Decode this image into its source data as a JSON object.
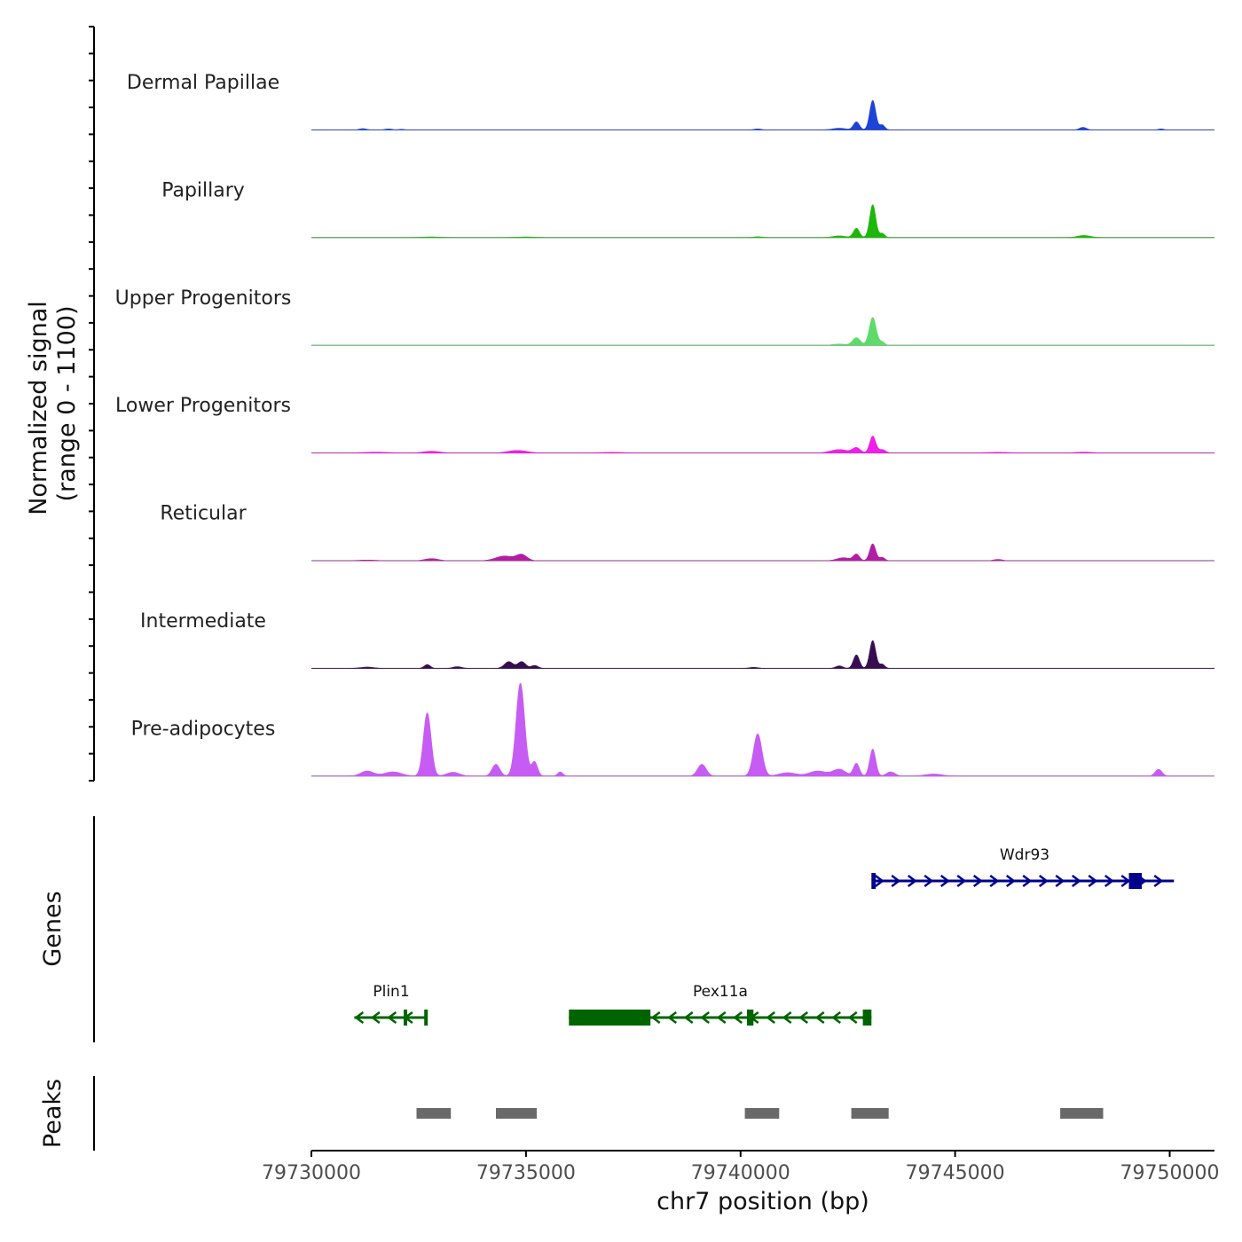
{
  "chart_data": {
    "type": "area",
    "xlabel": "chr7 position (bp)",
    "ylabel_line1": "Normalized signal",
    "ylabel_line2": "(range 0 - 1100)",
    "ylim": [
      0,
      1100
    ],
    "xlim": [
      79730000,
      79751000
    ],
    "x_ticks": [
      79730000,
      79735000,
      79740000,
      79745000,
      79750000
    ],
    "x_tick_labels": [
      "79730000",
      "79735000",
      "79740000",
      "79745000",
      "79750000"
    ],
    "series": [
      {
        "name": "Dermal Papillae",
        "color": "#1D43D8",
        "peaks": [
          {
            "x": 79731200,
            "w": 80,
            "h": 15
          },
          {
            "x": 79731800,
            "w": 80,
            "h": 12
          },
          {
            "x": 79732100,
            "w": 60,
            "h": 8
          },
          {
            "x": 79740400,
            "w": 80,
            "h": 12
          },
          {
            "x": 79742300,
            "w": 150,
            "h": 20
          },
          {
            "x": 79742700,
            "w": 70,
            "h": 95
          },
          {
            "x": 79743080,
            "w": 70,
            "h": 350
          },
          {
            "x": 79743300,
            "w": 60,
            "h": 60
          },
          {
            "x": 79747980,
            "w": 80,
            "h": 30
          },
          {
            "x": 79749800,
            "w": 60,
            "h": 12
          }
        ]
      },
      {
        "name": "Papillary",
        "color": "#1DB70B",
        "peaks": [
          {
            "x": 79732800,
            "w": 200,
            "h": 8
          },
          {
            "x": 79735000,
            "w": 200,
            "h": 8
          },
          {
            "x": 79740400,
            "w": 100,
            "h": 10
          },
          {
            "x": 79742300,
            "w": 150,
            "h": 20
          },
          {
            "x": 79742700,
            "w": 70,
            "h": 110
          },
          {
            "x": 79743080,
            "w": 70,
            "h": 390
          },
          {
            "x": 79743300,
            "w": 60,
            "h": 50
          },
          {
            "x": 79748000,
            "w": 150,
            "h": 25
          }
        ]
      },
      {
        "name": "Upper Progenitors",
        "color": "#5EDB6A",
        "peaks": [
          {
            "x": 79742300,
            "w": 150,
            "h": 15
          },
          {
            "x": 79742700,
            "w": 90,
            "h": 90
          },
          {
            "x": 79743080,
            "w": 80,
            "h": 330
          },
          {
            "x": 79743300,
            "w": 60,
            "h": 40
          }
        ]
      },
      {
        "name": "Lower Progenitors",
        "color": "#F01EE8",
        "peaks": [
          {
            "x": 79731500,
            "w": 300,
            "h": 10
          },
          {
            "x": 79732800,
            "w": 200,
            "h": 20
          },
          {
            "x": 79734800,
            "w": 220,
            "h": 30
          },
          {
            "x": 79737000,
            "w": 300,
            "h": 8
          },
          {
            "x": 79742300,
            "w": 200,
            "h": 40
          },
          {
            "x": 79742700,
            "w": 90,
            "h": 60
          },
          {
            "x": 79743080,
            "w": 70,
            "h": 200
          },
          {
            "x": 79743300,
            "w": 80,
            "h": 40
          },
          {
            "x": 79746000,
            "w": 300,
            "h": 8
          },
          {
            "x": 79748000,
            "w": 200,
            "h": 10
          }
        ]
      },
      {
        "name": "Reticular",
        "color": "#B21EA3",
        "peaks": [
          {
            "x": 79731300,
            "w": 200,
            "h": 8
          },
          {
            "x": 79732800,
            "w": 150,
            "h": 25
          },
          {
            "x": 79734500,
            "w": 200,
            "h": 55
          },
          {
            "x": 79734900,
            "w": 120,
            "h": 70
          },
          {
            "x": 79742400,
            "w": 150,
            "h": 35
          },
          {
            "x": 79742700,
            "w": 70,
            "h": 75
          },
          {
            "x": 79743080,
            "w": 70,
            "h": 200
          },
          {
            "x": 79743300,
            "w": 60,
            "h": 40
          },
          {
            "x": 79746000,
            "w": 100,
            "h": 15
          }
        ]
      },
      {
        "name": "Intermediate",
        "color": "#380D50",
        "peaks": [
          {
            "x": 79731300,
            "w": 150,
            "h": 15
          },
          {
            "x": 79732700,
            "w": 70,
            "h": 45
          },
          {
            "x": 79733400,
            "w": 100,
            "h": 20
          },
          {
            "x": 79734600,
            "w": 100,
            "h": 80
          },
          {
            "x": 79734900,
            "w": 90,
            "h": 80
          },
          {
            "x": 79735200,
            "w": 80,
            "h": 35
          },
          {
            "x": 79740300,
            "w": 100,
            "h": 12
          },
          {
            "x": 79742300,
            "w": 80,
            "h": 30
          },
          {
            "x": 79742700,
            "w": 70,
            "h": 160
          },
          {
            "x": 79743080,
            "w": 70,
            "h": 330
          },
          {
            "x": 79743300,
            "w": 60,
            "h": 50
          }
        ]
      },
      {
        "name": "Pre-adipocytes",
        "color": "#C65CF4",
        "peaks": [
          {
            "x": 79731300,
            "w": 150,
            "h": 60
          },
          {
            "x": 79731900,
            "w": 200,
            "h": 50
          },
          {
            "x": 79732700,
            "w": 90,
            "h": 750
          },
          {
            "x": 79733300,
            "w": 150,
            "h": 45
          },
          {
            "x": 79734300,
            "w": 90,
            "h": 140
          },
          {
            "x": 79734870,
            "w": 100,
            "h": 1100
          },
          {
            "x": 79735200,
            "w": 70,
            "h": 170
          },
          {
            "x": 79735800,
            "w": 60,
            "h": 50
          },
          {
            "x": 79739100,
            "w": 100,
            "h": 140
          },
          {
            "x": 79740400,
            "w": 100,
            "h": 500
          },
          {
            "x": 79741100,
            "w": 200,
            "h": 40
          },
          {
            "x": 79741800,
            "w": 200,
            "h": 60
          },
          {
            "x": 79742300,
            "w": 150,
            "h": 80
          },
          {
            "x": 79742700,
            "w": 70,
            "h": 150
          },
          {
            "x": 79743080,
            "w": 70,
            "h": 320
          },
          {
            "x": 79743500,
            "w": 100,
            "h": 50
          },
          {
            "x": 79744500,
            "w": 200,
            "h": 25
          },
          {
            "x": 79749740,
            "w": 80,
            "h": 80
          }
        ]
      }
    ],
    "genes_track_label": "Genes",
    "genes": [
      {
        "name": "Wdr93",
        "strand": "+",
        "color": "#00008B",
        "start": 79743100,
        "end": 79750100,
        "exons": [
          [
            79743050,
            79743150
          ],
          [
            79749050,
            79749350
          ]
        ]
      },
      {
        "name": "Plin1",
        "strand": "-",
        "color": "#006400",
        "start": 79731000,
        "end": 79732700,
        "exons": [
          [
            79732150,
            79732220
          ],
          [
            79732630,
            79732700
          ]
        ]
      },
      {
        "name": "Pex11a",
        "strand": "-",
        "color": "#006400",
        "start": 79736000,
        "end": 79743050,
        "exons": [
          [
            79736000,
            79737900
          ],
          [
            79740150,
            79740300
          ],
          [
            79742850,
            79743050
          ]
        ]
      }
    ],
    "peaks_track_label": "Peaks",
    "peaks_color": "#696969",
    "peak_regions": [
      [
        79732450,
        79733250
      ],
      [
        79734300,
        79735250
      ],
      [
        79740100,
        79740900
      ],
      [
        79742580,
        79743450
      ],
      [
        79747450,
        79748450
      ]
    ]
  }
}
